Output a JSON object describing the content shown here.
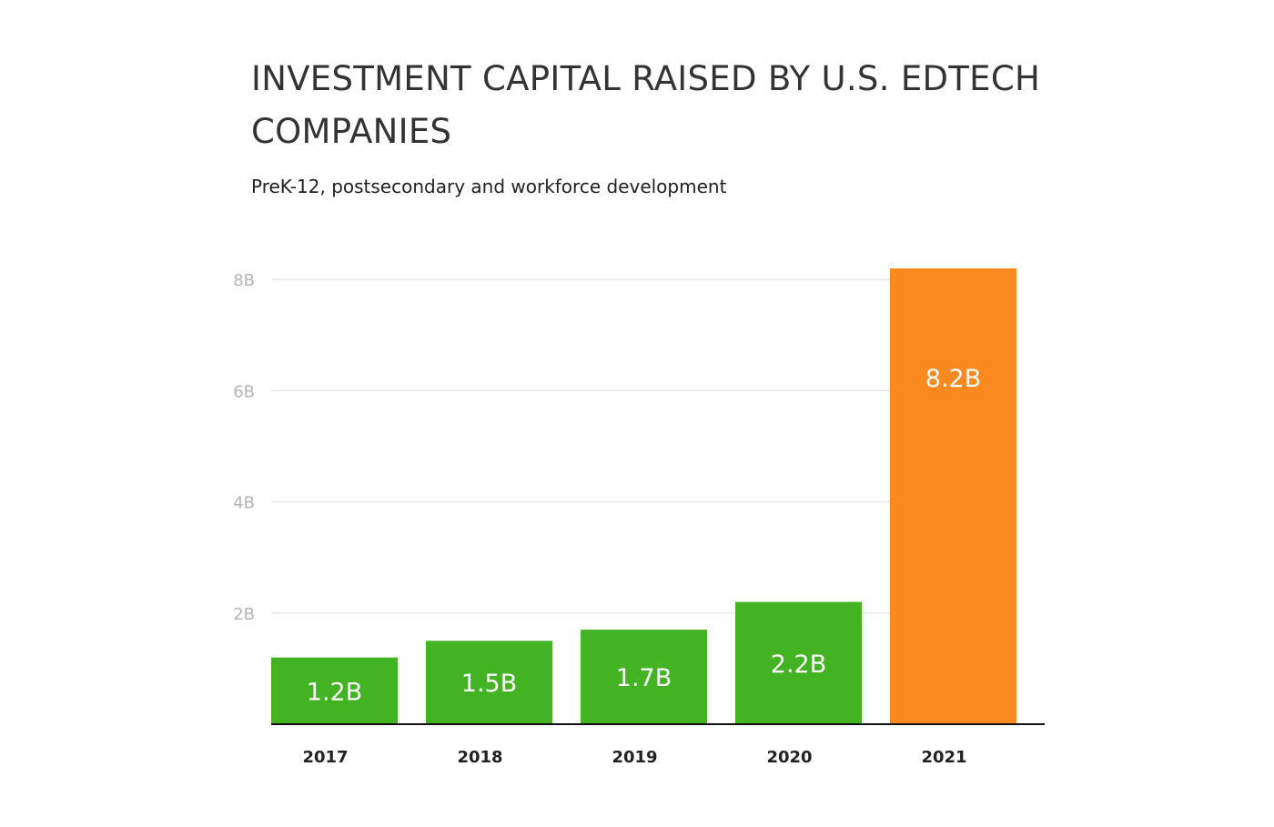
{
  "chart_data": {
    "type": "bar",
    "title": "INVESTMENT CAPITAL RAISED BY U.S. EDTECH COMPANIES",
    "subtitle": "PreK-12, postsecondary and workforce development",
    "xlabel": "",
    "ylabel": "",
    "categories": [
      "2017",
      "2018",
      "2019",
      "2020",
      "2021"
    ],
    "values": [
      1.2,
      1.5,
      1.7,
      2.2,
      8.2
    ],
    "data_labels": [
      "1.2B",
      "1.5B",
      "1.7B",
      "2.2B",
      "8.2B"
    ],
    "bar_colors": [
      "#43b324",
      "#43b324",
      "#43b324",
      "#43b324",
      "#fa8a20"
    ],
    "yticks": [
      {
        "value": 2,
        "label": "2B"
      },
      {
        "value": 4,
        "label": "4B"
      },
      {
        "value": 6,
        "label": "6B"
      },
      {
        "value": 8,
        "label": "8B"
      }
    ],
    "ylim": [
      0,
      8
    ],
    "grid": true,
    "legend": "none",
    "colors": {
      "gridline": "#e2e2e2",
      "baseline": "#111111"
    }
  }
}
